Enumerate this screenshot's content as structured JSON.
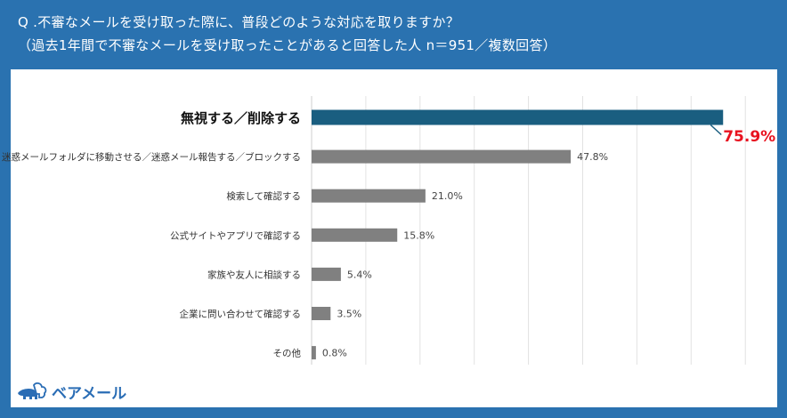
{
  "header": {
    "question": "Q .不審なメールを受け取った際に、普段どのような対応を取りますか？",
    "subtitle": "（過去1年間で不審なメールを受け取ったことがあると回答した人 n＝951／複数回答）"
  },
  "brand": {
    "name": "ベアメール",
    "icon": "bear-cloud-logo-icon"
  },
  "colors": {
    "background": "#2a72b0",
    "highlight_bar": "#1a5e80",
    "bar": "#808080",
    "highlight_label": "#e8121f"
  },
  "chart_data": {
    "type": "bar",
    "orientation": "horizontal",
    "categories": [
      "無視する／削除する",
      "迷惑メールフォルダに移動させる／迷惑メール報告する／ブロックする",
      "検索して確認する",
      "公式サイトやアプリで確認する",
      "家族や友人に相談する",
      "企業に問い合わせて確認する",
      "その他"
    ],
    "values": [
      75.9,
      47.8,
      21.0,
      15.8,
      5.4,
      3.5,
      0.8
    ],
    "labels": [
      "75.9%",
      "47.8%",
      "21.0%",
      "15.8%",
      "5.4%",
      "3.5%",
      "0.8%"
    ],
    "highlight_index": 0,
    "xlim": [
      0,
      80
    ],
    "grid_step": 10,
    "grid": true,
    "title": "",
    "xlabel": "",
    "ylabel": ""
  }
}
